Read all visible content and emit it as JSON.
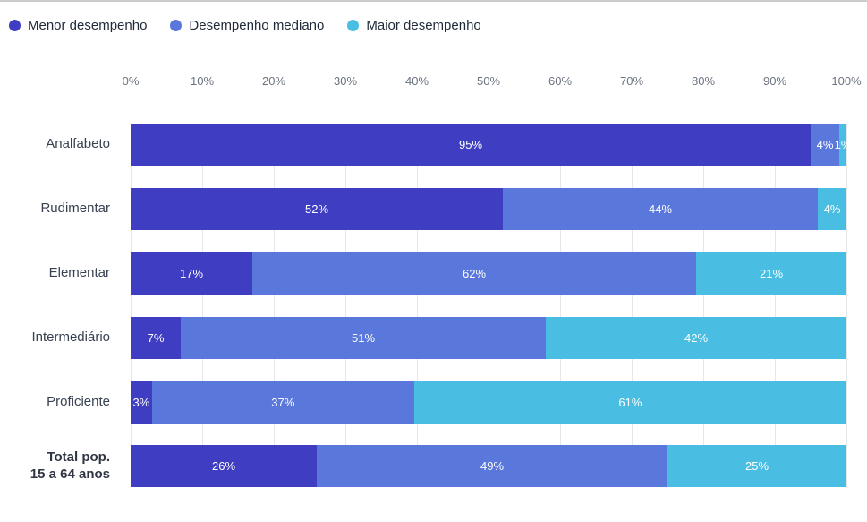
{
  "chart_data": {
    "type": "bar",
    "orientation": "horizontal-stacked",
    "title": "",
    "xlabel": "",
    "ylabel": "",
    "xlim": [
      0,
      100
    ],
    "grid": true,
    "legend_position": "top-left",
    "value_suffix": "%",
    "x_ticks": [
      "0%",
      "10%",
      "20%",
      "30%",
      "40%",
      "50%",
      "60%",
      "70%",
      "80%",
      "90%",
      "100%"
    ],
    "categories": [
      {
        "lines": [
          "Analfabeto"
        ],
        "bold": false
      },
      {
        "lines": [
          "Rudimentar"
        ],
        "bold": false
      },
      {
        "lines": [
          "Elementar"
        ],
        "bold": false
      },
      {
        "lines": [
          "Intermediário"
        ],
        "bold": false
      },
      {
        "lines": [
          "Proficiente"
        ],
        "bold": false
      },
      {
        "lines": [
          "Total pop.",
          "15 a 64 anos"
        ],
        "bold": true
      }
    ],
    "series": [
      {
        "name": "Menor desempenho",
        "color": "#3f3ec2",
        "values": [
          95,
          52,
          17,
          7,
          3,
          26
        ]
      },
      {
        "name": "Desempenho mediano",
        "color": "#5a78db",
        "values": [
          4,
          44,
          62,
          51,
          37,
          49
        ]
      },
      {
        "name": "Maior desempenho",
        "color": "#4abee2",
        "values": [
          1,
          4,
          21,
          42,
          61,
          25
        ]
      }
    ]
  },
  "colors": {
    "grid": "#e5e7eb",
    "tick_text": "#6b7280",
    "category_text": "#374151",
    "legend_text": "#1f2937",
    "value_text": "#ffffff",
    "top_border": "#cccccc"
  }
}
